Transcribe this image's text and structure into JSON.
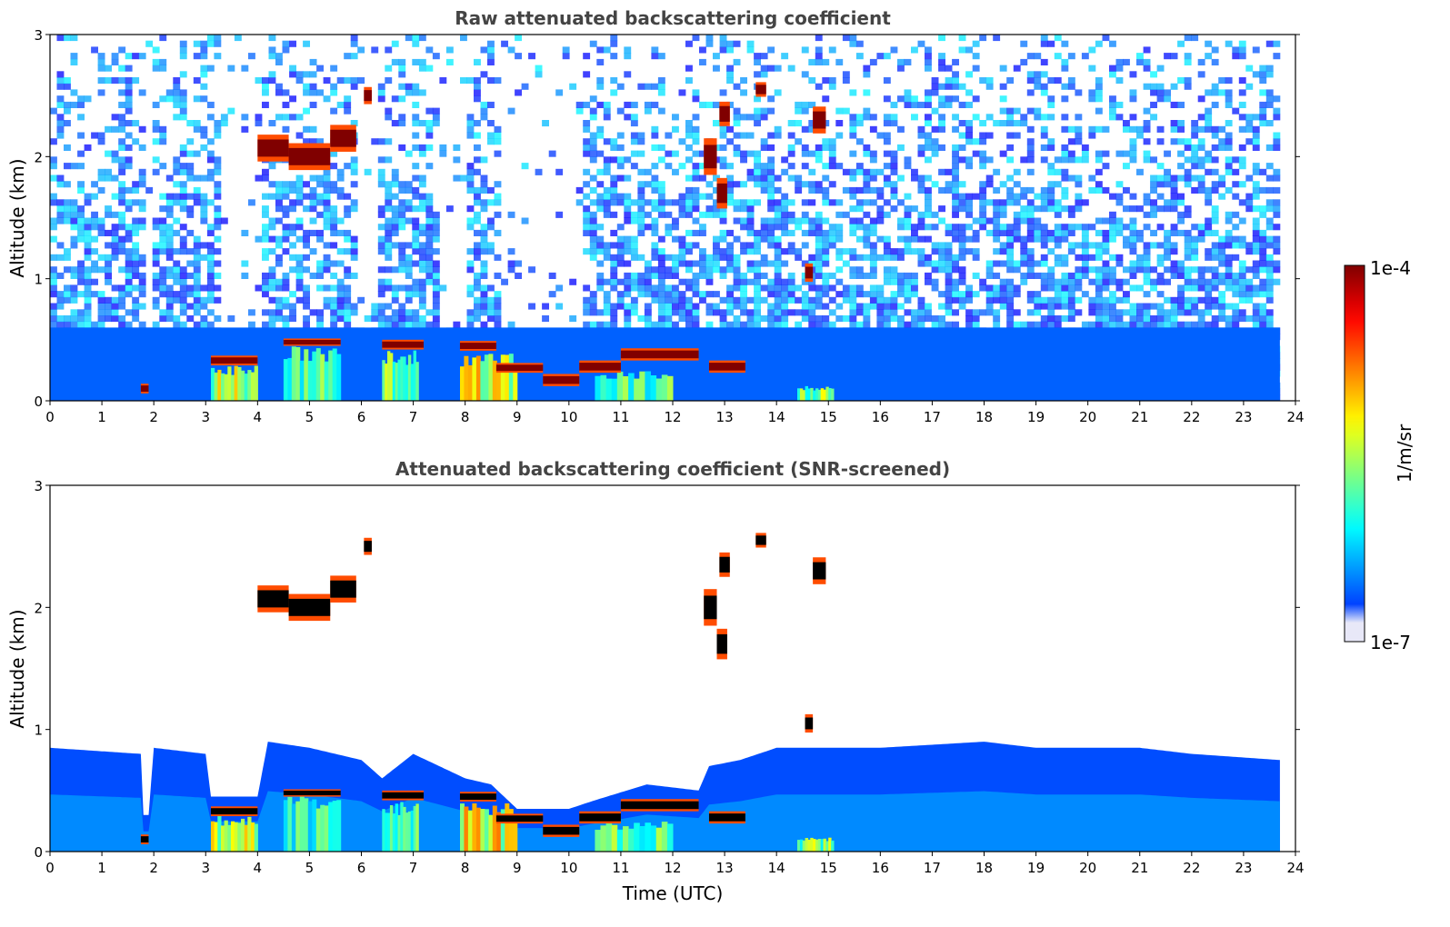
{
  "chart_data": [
    {
      "type": "heatmap",
      "title": "Raw attenuated backscattering coefficient",
      "xlabel": "",
      "ylabel": "Altitude (km)",
      "xlim": [
        0,
        24
      ],
      "ylim": [
        0,
        3
      ],
      "xticks": [
        "0",
        "1",
        "2",
        "3",
        "4",
        "5",
        "6",
        "7",
        "8",
        "9",
        "10",
        "11",
        "12",
        "13",
        "14",
        "15",
        "16",
        "17",
        "18",
        "19",
        "20",
        "21",
        "22",
        "23",
        "24"
      ],
      "yticks": [
        "0",
        "1",
        "2",
        "3"
      ],
      "data_end_hour": 23.7,
      "noise": "high",
      "features": [
        {
          "kind": "boundary_layer",
          "t0": 0,
          "t1": 23.7,
          "z0": 0,
          "z1": 0.6,
          "level": 0.22
        },
        {
          "kind": "aerosol",
          "t0": 3.1,
          "t1": 4.0,
          "z0": 0.0,
          "z1": 0.3,
          "level": 0.6
        },
        {
          "kind": "aerosol",
          "t0": 4.5,
          "t1": 5.6,
          "z0": 0.0,
          "z1": 0.45,
          "level": 0.48
        },
        {
          "kind": "aerosol",
          "t0": 6.4,
          "t1": 7.1,
          "z0": 0.0,
          "z1": 0.42,
          "level": 0.52
        },
        {
          "kind": "aerosol",
          "t0": 7.9,
          "t1": 9.0,
          "z0": 0.0,
          "z1": 0.4,
          "level": 0.66
        },
        {
          "kind": "aerosol",
          "t0": 10.5,
          "t1": 12.0,
          "z0": 0.0,
          "z1": 0.25,
          "level": 0.5
        },
        {
          "kind": "aerosol",
          "t0": 14.4,
          "t1": 15.1,
          "z0": 0.0,
          "z1": 0.12,
          "level": 0.55
        },
        {
          "kind": "cloud_base",
          "t0": 3.1,
          "t1": 4.0,
          "z": 0.33,
          "thickness": 0.08
        },
        {
          "kind": "cloud_base",
          "t0": 4.5,
          "t1": 5.6,
          "z": 0.48,
          "thickness": 0.06
        },
        {
          "kind": "cloud_base",
          "t0": 6.4,
          "t1": 7.2,
          "z": 0.46,
          "thickness": 0.08
        },
        {
          "kind": "cloud_base",
          "t0": 7.9,
          "t1": 8.6,
          "z": 0.45,
          "thickness": 0.08
        },
        {
          "kind": "cloud_base",
          "t0": 8.6,
          "t1": 9.5,
          "z": 0.27,
          "thickness": 0.08
        },
        {
          "kind": "cloud_base",
          "t0": 9.5,
          "t1": 10.2,
          "z": 0.17,
          "thickness": 0.1
        },
        {
          "kind": "cloud_base",
          "t0": 10.2,
          "t1": 11.0,
          "z": 0.28,
          "thickness": 0.1
        },
        {
          "kind": "cloud_base",
          "t0": 11.0,
          "t1": 12.5,
          "z": 0.38,
          "thickness": 0.1
        },
        {
          "kind": "cloud_base",
          "t0": 12.7,
          "t1": 13.4,
          "z": 0.28,
          "thickness": 0.1
        },
        {
          "kind": "elevated_cloud",
          "t0": 4.0,
          "t1": 4.6,
          "z": 2.07,
          "thickness": 0.22
        },
        {
          "kind": "elevated_cloud",
          "t0": 4.6,
          "t1": 5.4,
          "z": 2.0,
          "thickness": 0.22
        },
        {
          "kind": "elevated_cloud",
          "t0": 5.4,
          "t1": 5.9,
          "z": 2.15,
          "thickness": 0.22
        },
        {
          "kind": "elevated_cloud",
          "t0": 6.05,
          "t1": 6.2,
          "z": 2.5,
          "thickness": 0.14
        },
        {
          "kind": "elevated_cloud",
          "t0": 12.6,
          "t1": 12.85,
          "z": 2.0,
          "thickness": 0.3
        },
        {
          "kind": "elevated_cloud",
          "t0": 12.85,
          "t1": 13.05,
          "z": 1.7,
          "thickness": 0.25
        },
        {
          "kind": "elevated_cloud",
          "t0": 12.9,
          "t1": 13.1,
          "z": 2.35,
          "thickness": 0.2
        },
        {
          "kind": "elevated_cloud",
          "t0": 13.6,
          "t1": 13.8,
          "z": 2.55,
          "thickness": 0.12
        },
        {
          "kind": "elevated_cloud",
          "t0": 14.7,
          "t1": 14.95,
          "z": 2.3,
          "thickness": 0.22
        },
        {
          "kind": "elevated_cloud",
          "t0": 14.55,
          "t1": 14.7,
          "z": 1.05,
          "thickness": 0.15
        },
        {
          "kind": "elevated_cloud",
          "t0": 1.75,
          "t1": 1.9,
          "z": 0.1,
          "thickness": 0.08
        }
      ],
      "clear_gaps": [
        {
          "t0": 1.8,
          "t1": 1.9,
          "z0": 0.3
        },
        {
          "t0": 3.2,
          "t1": 4.0,
          "z0": 0.45
        },
        {
          "t0": 5.9,
          "t1": 6.3,
          "z0": 0.6
        },
        {
          "t0": 7.5,
          "t1": 7.9,
          "z0": 0.6
        },
        {
          "t0": 8.6,
          "t1": 10.2,
          "z0": 0.45
        }
      ]
    },
    {
      "type": "heatmap",
      "title": "Attenuated backscattering coefficient (SNR-screened)",
      "xlabel": "Time (UTC)",
      "ylabel": "Altitude (km)",
      "xlim": [
        0,
        24
      ],
      "ylim": [
        0,
        3
      ],
      "xticks": [
        "0",
        "1",
        "2",
        "3",
        "4",
        "5",
        "6",
        "7",
        "8",
        "9",
        "10",
        "11",
        "12",
        "13",
        "14",
        "15",
        "16",
        "17",
        "18",
        "19",
        "20",
        "21",
        "22",
        "23",
        "24"
      ],
      "yticks": [
        "0",
        "1",
        "2",
        "3"
      ],
      "data_end_hour": 23.7,
      "noise": "screened",
      "boundary_layer_top_km": [
        [
          0,
          0.85
        ],
        [
          1.75,
          0.8
        ],
        [
          1.8,
          0.3
        ],
        [
          1.9,
          0.3
        ],
        [
          2.0,
          0.85
        ],
        [
          3.0,
          0.8
        ],
        [
          3.1,
          0.45
        ],
        [
          4.0,
          0.45
        ],
        [
          4.2,
          0.9
        ],
        [
          5.0,
          0.85
        ],
        [
          6.0,
          0.75
        ],
        [
          6.4,
          0.6
        ],
        [
          7.0,
          0.8
        ],
        [
          7.5,
          0.7
        ],
        [
          8.0,
          0.6
        ],
        [
          8.5,
          0.55
        ],
        [
          9.0,
          0.35
        ],
        [
          10.0,
          0.35
        ],
        [
          10.5,
          0.42
        ],
        [
          11.5,
          0.55
        ],
        [
          12.5,
          0.5
        ],
        [
          12.7,
          0.7
        ],
        [
          13.3,
          0.75
        ],
        [
          14.0,
          0.85
        ],
        [
          16.0,
          0.85
        ],
        [
          18.0,
          0.9
        ],
        [
          19.0,
          0.85
        ],
        [
          21.0,
          0.85
        ],
        [
          22.0,
          0.8
        ],
        [
          23.7,
          0.75
        ]
      ],
      "features": [
        {
          "kind": "aerosol",
          "t0": 3.1,
          "t1": 4.0,
          "z0": 0.0,
          "z1": 0.3,
          "level": 0.6
        },
        {
          "kind": "aerosol",
          "t0": 4.5,
          "t1": 5.6,
          "z0": 0.0,
          "z1": 0.45,
          "level": 0.48
        },
        {
          "kind": "aerosol",
          "t0": 6.4,
          "t1": 7.1,
          "z0": 0.0,
          "z1": 0.42,
          "level": 0.52
        },
        {
          "kind": "aerosol",
          "t0": 7.9,
          "t1": 9.0,
          "z0": 0.0,
          "z1": 0.4,
          "level": 0.66
        },
        {
          "kind": "aerosol",
          "t0": 10.5,
          "t1": 12.0,
          "z0": 0.0,
          "z1": 0.25,
          "level": 0.5
        },
        {
          "kind": "aerosol",
          "t0": 14.4,
          "t1": 15.1,
          "z0": 0.0,
          "z1": 0.12,
          "level": 0.55
        },
        {
          "kind": "cloud_base",
          "t0": 3.1,
          "t1": 4.0,
          "z": 0.33,
          "thickness": 0.08
        },
        {
          "kind": "cloud_base",
          "t0": 4.5,
          "t1": 5.6,
          "z": 0.48,
          "thickness": 0.06
        },
        {
          "kind": "cloud_base",
          "t0": 6.4,
          "t1": 7.2,
          "z": 0.46,
          "thickness": 0.08
        },
        {
          "kind": "cloud_base",
          "t0": 7.9,
          "t1": 8.6,
          "z": 0.45,
          "thickness": 0.08
        },
        {
          "kind": "cloud_base",
          "t0": 8.6,
          "t1": 9.5,
          "z": 0.27,
          "thickness": 0.08
        },
        {
          "kind": "cloud_base",
          "t0": 9.5,
          "t1": 10.2,
          "z": 0.17,
          "thickness": 0.1
        },
        {
          "kind": "cloud_base",
          "t0": 10.2,
          "t1": 11.0,
          "z": 0.28,
          "thickness": 0.1
        },
        {
          "kind": "cloud_base",
          "t0": 11.0,
          "t1": 12.5,
          "z": 0.38,
          "thickness": 0.1
        },
        {
          "kind": "cloud_base",
          "t0": 12.7,
          "t1": 13.4,
          "z": 0.28,
          "thickness": 0.1
        },
        {
          "kind": "elevated_cloud",
          "t0": 4.0,
          "t1": 4.6,
          "z": 2.07,
          "thickness": 0.22
        },
        {
          "kind": "elevated_cloud",
          "t0": 4.6,
          "t1": 5.4,
          "z": 2.0,
          "thickness": 0.22
        },
        {
          "kind": "elevated_cloud",
          "t0": 5.4,
          "t1": 5.9,
          "z": 2.15,
          "thickness": 0.22
        },
        {
          "kind": "elevated_cloud",
          "t0": 6.05,
          "t1": 6.2,
          "z": 2.5,
          "thickness": 0.14
        },
        {
          "kind": "elevated_cloud",
          "t0": 12.6,
          "t1": 12.85,
          "z": 2.0,
          "thickness": 0.3
        },
        {
          "kind": "elevated_cloud",
          "t0": 12.85,
          "t1": 13.05,
          "z": 1.7,
          "thickness": 0.25
        },
        {
          "kind": "elevated_cloud",
          "t0": 12.9,
          "t1": 13.1,
          "z": 2.35,
          "thickness": 0.2
        },
        {
          "kind": "elevated_cloud",
          "t0": 13.6,
          "t1": 13.8,
          "z": 2.55,
          "thickness": 0.12
        },
        {
          "kind": "elevated_cloud",
          "t0": 14.7,
          "t1": 14.95,
          "z": 2.3,
          "thickness": 0.22
        },
        {
          "kind": "elevated_cloud",
          "t0": 14.55,
          "t1": 14.7,
          "z": 1.05,
          "thickness": 0.15
        },
        {
          "kind": "elevated_cloud",
          "t0": 1.75,
          "t1": 1.9,
          "z": 0.1,
          "thickness": 0.08
        }
      ],
      "saturated_color": "#000000"
    }
  ],
  "colorbar": {
    "label": "1/m/sr",
    "max_label": "1e-4",
    "min_label": "1e-7",
    "colormap": "jet",
    "scale": "log",
    "min": 1e-07,
    "max": 0.0001
  }
}
